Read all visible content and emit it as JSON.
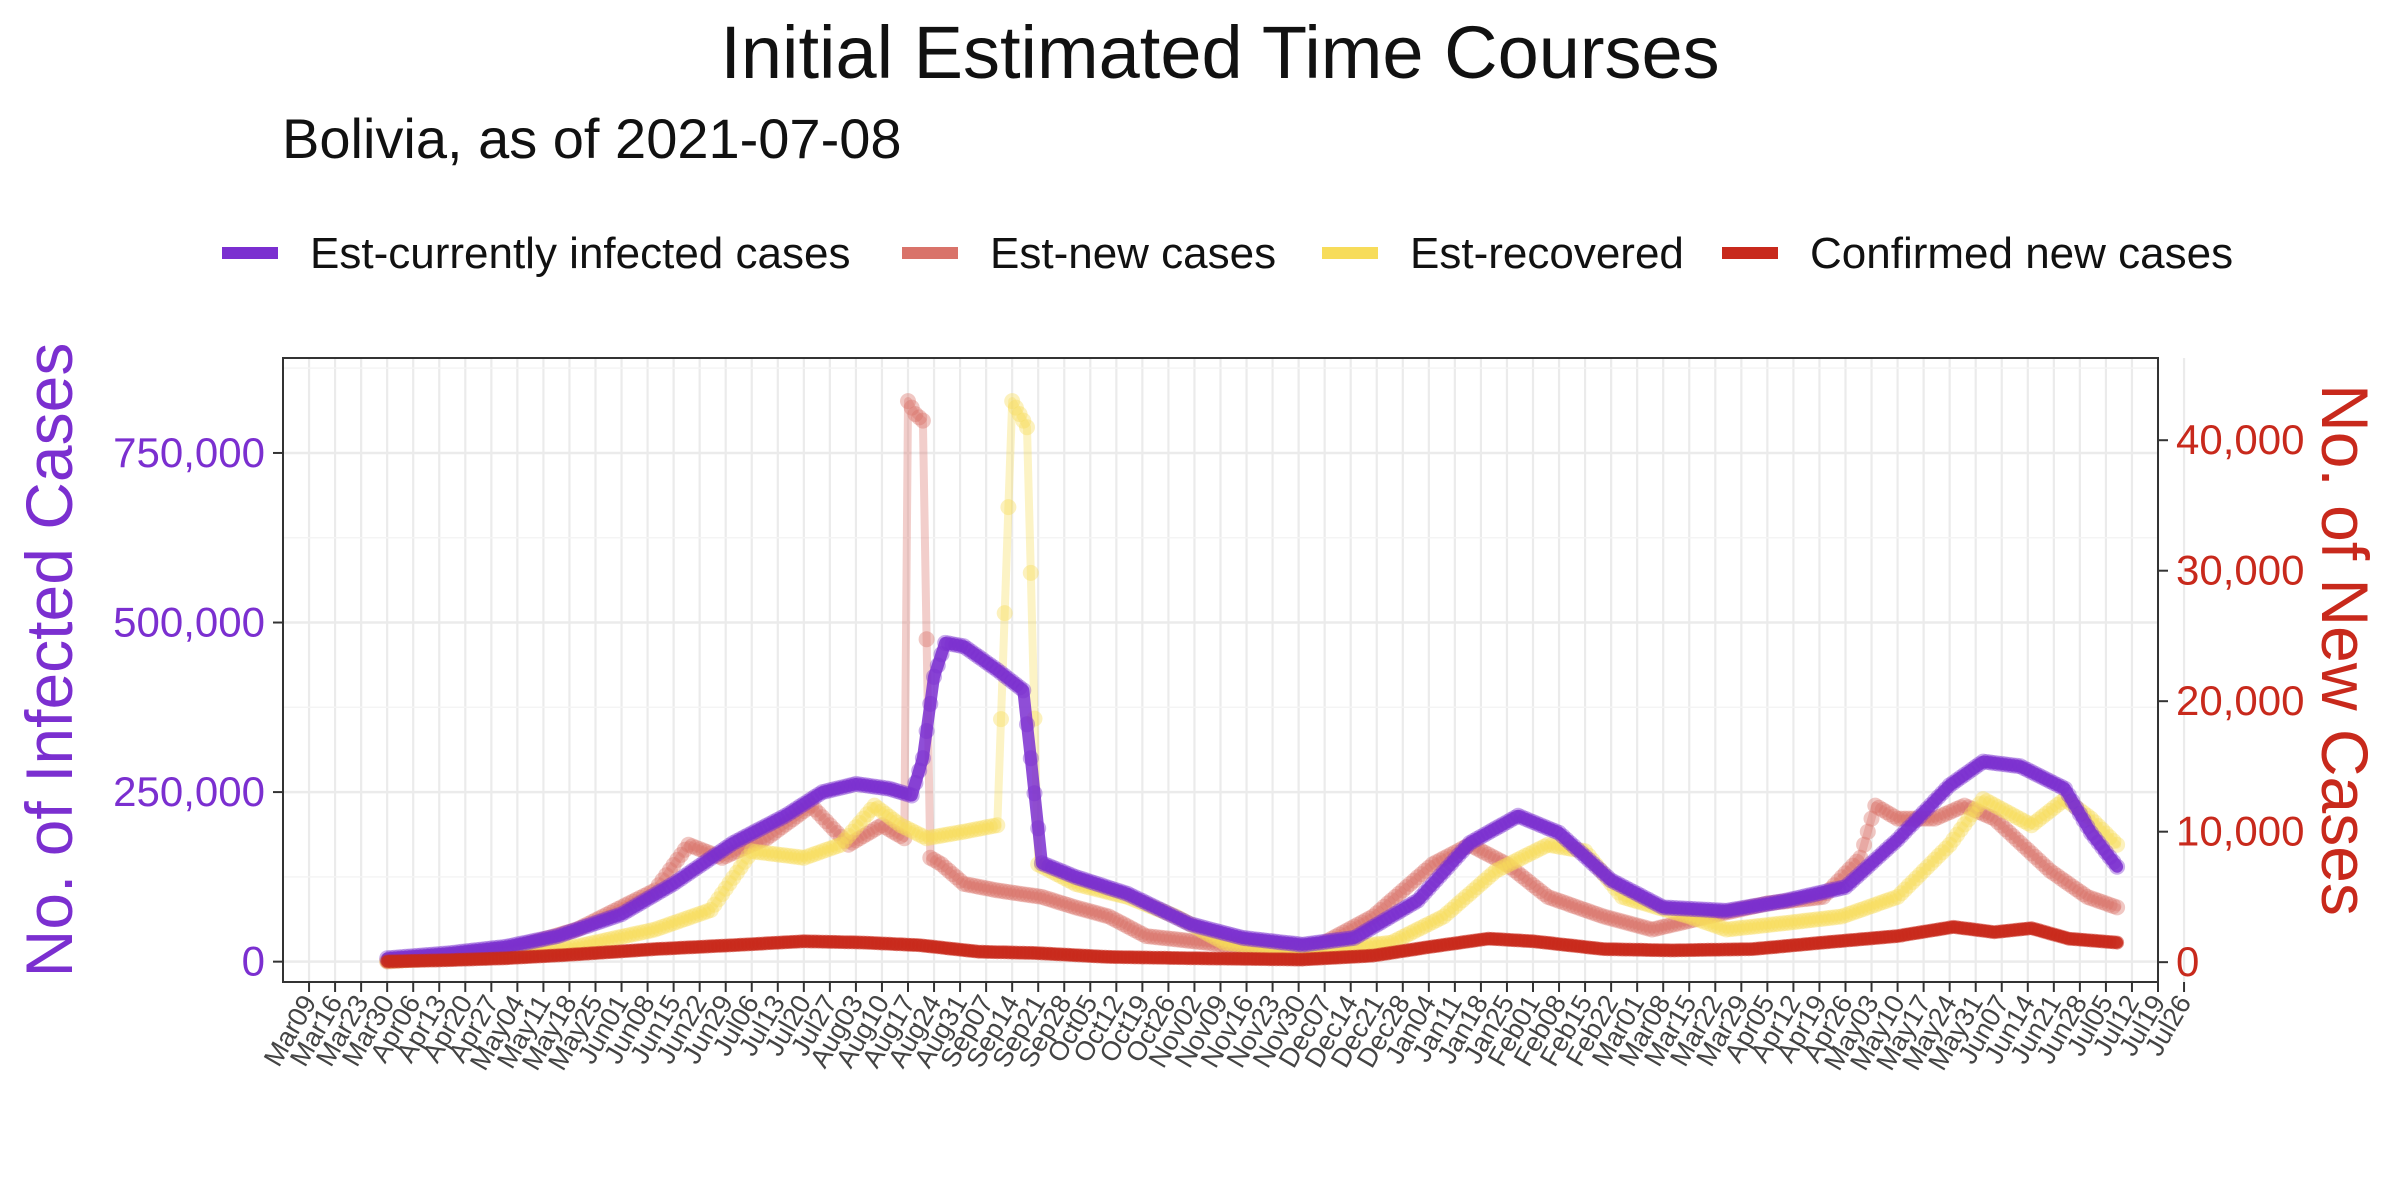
{
  "chart_data": {
    "type": "line",
    "title": "Initial Estimated Time Courses",
    "subtitle": "Bolivia, as of 2021-07-08",
    "y_left_label": "No. of Infected Cases",
    "y_right_label": "No. of New Cases",
    "y_left_ticks": [
      "0",
      "250,000",
      "500,000",
      "750,000"
    ],
    "y_right_ticks": [
      "0",
      "10,000",
      "20,000",
      "30,000",
      "40,000"
    ],
    "y_left_range": [
      -30000,
      890000
    ],
    "y_right_range": [
      -1520,
      46300
    ],
    "x_range_days": [
      -7,
      497
    ],
    "x_start_date": "2020-03-09",
    "legend_position": "top",
    "grid": true,
    "x_tick_labels": [
      "Mar09",
      "Mar16",
      "Mar23",
      "Mar30",
      "Apr06",
      "Apr13",
      "Apr20",
      "Apr27",
      "May04",
      "May11",
      "May18",
      "May25",
      "Jun01",
      "Jun08",
      "Jun15",
      "Jun22",
      "Jun29",
      "Jul06",
      "Jul13",
      "Jul20",
      "Jul27",
      "Aug03",
      "Aug10",
      "Aug17",
      "Aug24",
      "Aug31",
      "Sep07",
      "Sep14",
      "Sep21",
      "Sep28",
      "Oct05",
      "Oct12",
      "Oct19",
      "Oct26",
      "Nov02",
      "Nov09",
      "Nov16",
      "Nov23",
      "Nov30",
      "Dec07",
      "Dec14",
      "Dec21",
      "Dec28",
      "Jan04",
      "Jan11",
      "Jan18",
      "Jan25",
      "Feb01",
      "Feb08",
      "Feb15",
      "Feb22",
      "Mar01",
      "Mar08",
      "Mar15",
      "Mar22",
      "Mar29",
      "Apr05",
      "Apr12",
      "Apr19",
      "Apr26",
      "May03",
      "May10",
      "May17",
      "May24",
      "May31",
      "Jun07",
      "Jun14",
      "Jun21",
      "Jun28",
      "Jul05",
      "Jul12",
      "Jul19",
      "Jul26"
    ],
    "series": [
      {
        "name": "Est-currently infected cases",
        "color": "#7b2fd0",
        "axis": "left",
        "points": [
          [
            "2020-03-30",
            5000
          ],
          [
            "2020-04-15",
            12000
          ],
          [
            "2020-05-01",
            22000
          ],
          [
            "2020-05-15",
            38000
          ],
          [
            "2020-06-01",
            70000
          ],
          [
            "2020-06-15",
            115000
          ],
          [
            "2020-07-01",
            175000
          ],
          [
            "2020-07-15",
            215000
          ],
          [
            "2020-07-25",
            250000
          ],
          [
            "2020-08-03",
            262000
          ],
          [
            "2020-08-12",
            255000
          ],
          [
            "2020-08-18",
            245000
          ],
          [
            "2020-08-21",
            300000
          ],
          [
            "2020-08-24",
            420000
          ],
          [
            "2020-08-27",
            470000
          ],
          [
            "2020-09-01",
            465000
          ],
          [
            "2020-09-10",
            430000
          ],
          [
            "2020-09-17",
            400000
          ],
          [
            "2020-09-19",
            300000
          ],
          [
            "2020-09-22",
            145000
          ],
          [
            "2020-10-01",
            125000
          ],
          [
            "2020-10-15",
            100000
          ],
          [
            "2020-11-01",
            55000
          ],
          [
            "2020-11-15",
            35000
          ],
          [
            "2020-12-01",
            25000
          ],
          [
            "2020-12-15",
            35000
          ],
          [
            "2021-01-01",
            90000
          ],
          [
            "2021-01-15",
            175000
          ],
          [
            "2021-01-28",
            215000
          ],
          [
            "2021-02-08",
            190000
          ],
          [
            "2021-02-22",
            120000
          ],
          [
            "2021-03-08",
            80000
          ],
          [
            "2021-03-25",
            75000
          ],
          [
            "2021-04-10",
            90000
          ],
          [
            "2021-04-26",
            110000
          ],
          [
            "2021-05-10",
            180000
          ],
          [
            "2021-05-24",
            260000
          ],
          [
            "2021-06-02",
            295000
          ],
          [
            "2021-06-12",
            288000
          ],
          [
            "2021-06-24",
            255000
          ],
          [
            "2021-07-01",
            190000
          ],
          [
            "2021-07-08",
            140000
          ]
        ]
      },
      {
        "name": "Est-new cases",
        "color": "#d9736a",
        "axis": "right",
        "points": [
          [
            "2020-03-30",
            50
          ],
          [
            "2020-04-15",
            400
          ],
          [
            "2020-05-01",
            900
          ],
          [
            "2020-05-20",
            2500
          ],
          [
            "2020-06-10",
            5500
          ],
          [
            "2020-06-19",
            9000
          ],
          [
            "2020-06-28",
            8000
          ],
          [
            "2020-07-10",
            9500
          ],
          [
            "2020-07-22",
            12000
          ],
          [
            "2020-08-01",
            9000
          ],
          [
            "2020-08-10",
            10500
          ],
          [
            "2020-08-16",
            9500
          ],
          [
            "2020-08-17",
            43000
          ],
          [
            "2020-08-19",
            42000
          ],
          [
            "2020-08-21",
            41500
          ],
          [
            "2020-08-23",
            8000
          ],
          [
            "2020-08-26",
            7500
          ],
          [
            "2020-09-01",
            6000
          ],
          [
            "2020-09-10",
            5500
          ],
          [
            "2020-09-22",
            5000
          ],
          [
            "2020-10-01",
            4200
          ],
          [
            "2020-10-10",
            3500
          ],
          [
            "2020-10-20",
            2000
          ],
          [
            "2020-11-05",
            1500
          ],
          [
            "2020-11-20",
            1000
          ],
          [
            "2020-12-05",
            1200
          ],
          [
            "2020-12-20",
            3500
          ],
          [
            "2021-01-05",
            7500
          ],
          [
            "2021-01-15",
            9000
          ],
          [
            "2021-01-25",
            7500
          ],
          [
            "2021-02-05",
            5000
          ],
          [
            "2021-02-20",
            3500
          ],
          [
            "2021-03-05",
            2500
          ],
          [
            "2021-03-20",
            3500
          ],
          [
            "2021-04-05",
            4500
          ],
          [
            "2021-04-20",
            5000
          ],
          [
            "2021-04-30",
            8000
          ],
          [
            "2021-05-04",
            12000
          ],
          [
            "2021-05-10",
            11000
          ],
          [
            "2021-05-20",
            11000
          ],
          [
            "2021-05-28",
            12000
          ],
          [
            "2021-06-05",
            11000
          ],
          [
            "2021-06-20",
            7000
          ],
          [
            "2021-06-30",
            5000
          ],
          [
            "2021-07-08",
            4200
          ]
        ]
      },
      {
        "name": "Est-recovered",
        "color": "#f7dc5a",
        "axis": "right",
        "points": [
          [
            "2020-03-30",
            100
          ],
          [
            "2020-04-15",
            300
          ],
          [
            "2020-05-01",
            500
          ],
          [
            "2020-05-20",
            1200
          ],
          [
            "2020-06-10",
            2500
          ],
          [
            "2020-06-25",
            4000
          ],
          [
            "2020-07-06",
            8500
          ],
          [
            "2020-07-20",
            8000
          ],
          [
            "2020-07-30",
            9000
          ],
          [
            "2020-08-08",
            12000
          ],
          [
            "2020-08-15",
            10500
          ],
          [
            "2020-08-22",
            9500
          ],
          [
            "2020-09-01",
            10000
          ],
          [
            "2020-09-10",
            10500
          ],
          [
            "2020-09-14",
            43000
          ],
          [
            "2020-09-18",
            41000
          ],
          [
            "2020-09-21",
            7500
          ],
          [
            "2020-10-01",
            6000
          ],
          [
            "2020-10-15",
            5000
          ],
          [
            "2020-10-28",
            3500
          ],
          [
            "2020-11-10",
            1500
          ],
          [
            "2020-11-25",
            1000
          ],
          [
            "2020-12-10",
            1000
          ],
          [
            "2020-12-25",
            1500
          ],
          [
            "2021-01-08",
            3500
          ],
          [
            "2021-01-22",
            7000
          ],
          [
            "2021-02-05",
            9000
          ],
          [
            "2021-02-15",
            8500
          ],
          [
            "2021-02-25",
            5000
          ],
          [
            "2021-03-15",
            3500
          ],
          [
            "2021-03-25",
            2500
          ],
          [
            "2021-04-10",
            3000
          ],
          [
            "2021-04-25",
            3500
          ],
          [
            "2021-05-10",
            5000
          ],
          [
            "2021-05-24",
            9000
          ],
          [
            "2021-06-02",
            12500
          ],
          [
            "2021-06-15",
            10500
          ],
          [
            "2021-06-24",
            12500
          ],
          [
            "2021-07-01",
            11000
          ],
          [
            "2021-07-08",
            9000
          ]
        ]
      },
      {
        "name": "Confirmed new cases",
        "color": "#c8291c",
        "axis": "right",
        "points": [
          [
            "2020-03-30",
            50
          ],
          [
            "2020-04-15",
            150
          ],
          [
            "2020-05-01",
            300
          ],
          [
            "2020-05-20",
            600
          ],
          [
            "2020-06-10",
            1000
          ],
          [
            "2020-07-01",
            1300
          ],
          [
            "2020-07-20",
            1600
          ],
          [
            "2020-08-05",
            1500
          ],
          [
            "2020-08-20",
            1300
          ],
          [
            "2020-09-05",
            800
          ],
          [
            "2020-09-20",
            700
          ],
          [
            "2020-10-10",
            400
          ],
          [
            "2020-11-01",
            300
          ],
          [
            "2020-12-01",
            200
          ],
          [
            "2020-12-20",
            500
          ],
          [
            "2021-01-05",
            1200
          ],
          [
            "2021-01-20",
            1800
          ],
          [
            "2021-02-01",
            1600
          ],
          [
            "2021-02-20",
            1000
          ],
          [
            "2021-03-10",
            900
          ],
          [
            "2021-04-01",
            1000
          ],
          [
            "2021-04-20",
            1500
          ],
          [
            "2021-05-10",
            2000
          ],
          [
            "2021-05-25",
            2700
          ],
          [
            "2021-06-05",
            2300
          ],
          [
            "2021-06-15",
            2600
          ],
          [
            "2021-06-25",
            1800
          ],
          [
            "2021-07-08",
            1500
          ]
        ]
      }
    ]
  }
}
